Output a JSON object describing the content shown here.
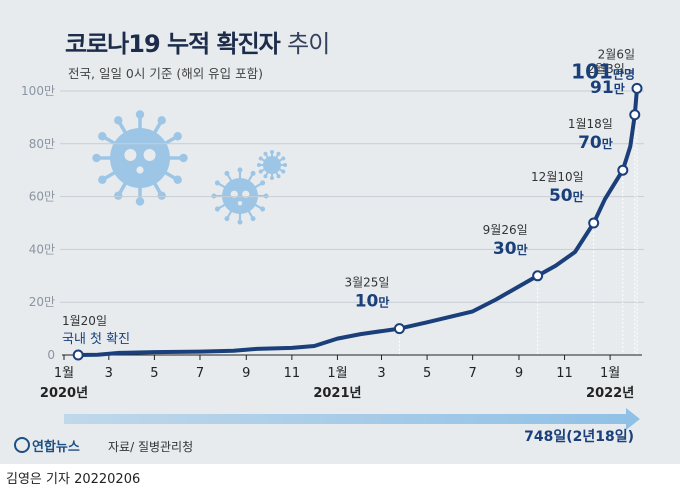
{
  "header": {
    "title": "코로나19 누적 확진자",
    "title_suffix": "추이",
    "subtitle": "전국, 일일 0시 기준 (해외 유입 포함)"
  },
  "chart_data": {
    "type": "line",
    "title": "코로나19 누적 확진자 추이",
    "subtitle": "전국, 일일 0시 기준 (해외 유입 포함)",
    "y_unit": "만",
    "ylim": [
      0,
      100
    ],
    "y_ticks": [
      "0",
      "20만",
      "40만",
      "60만",
      "80만",
      "100만"
    ],
    "x_range": [
      "2020-01-01",
      "2022-02-10"
    ],
    "x_ticks": [
      {
        "date": "2020-01-01",
        "label": "1월"
      },
      {
        "date": "2020-03-01",
        "label": "3"
      },
      {
        "date": "2020-05-01",
        "label": "5"
      },
      {
        "date": "2020-07-01",
        "label": "7"
      },
      {
        "date": "2020-09-01",
        "label": "9"
      },
      {
        "date": "2020-11-01",
        "label": "11"
      },
      {
        "date": "2021-01-01",
        "label": "1월"
      },
      {
        "date": "2021-03-01",
        "label": "3"
      },
      {
        "date": "2021-05-01",
        "label": "5"
      },
      {
        "date": "2021-07-01",
        "label": "7"
      },
      {
        "date": "2021-09-01",
        "label": "9"
      },
      {
        "date": "2021-11-01",
        "label": "11"
      },
      {
        "date": "2022-01-01",
        "label": "1월"
      }
    ],
    "year_labels": [
      {
        "date": "2020-01-01",
        "label": "2020년"
      },
      {
        "date": "2021-01-01",
        "label": "2021년"
      },
      {
        "date": "2022-01-01",
        "label": "2022년"
      }
    ],
    "grid": true,
    "series": [
      {
        "color": "#1a3f7a",
        "points": [
          [
            "2020-01-20",
            0
          ],
          [
            "2020-02-15",
            0.1
          ],
          [
            "2020-03-15",
            0.8
          ],
          [
            "2020-05-01",
            1.1
          ],
          [
            "2020-07-01",
            1.3
          ],
          [
            "2020-08-15",
            1.6
          ],
          [
            "2020-09-15",
            2.3
          ],
          [
            "2020-11-01",
            2.7
          ],
          [
            "2020-12-01",
            3.4
          ],
          [
            "2021-01-01",
            6.2
          ],
          [
            "2021-02-01",
            7.9
          ],
          [
            "2021-03-25",
            10
          ],
          [
            "2021-05-01",
            12.4
          ],
          [
            "2021-07-01",
            16.5
          ],
          [
            "2021-08-01",
            21
          ],
          [
            "2021-09-26",
            30
          ],
          [
            "2021-10-20",
            33.8
          ],
          [
            "2021-11-15",
            39
          ],
          [
            "2021-12-10",
            50
          ],
          [
            "2021-12-25",
            59
          ],
          [
            "2022-01-18",
            70
          ],
          [
            "2022-01-28",
            79
          ],
          [
            "2022-02-03",
            91
          ],
          [
            "2022-02-06",
            101
          ]
        ]
      }
    ],
    "annotations": [
      {
        "date": "2020-01-20",
        "y": 0,
        "date_label": "1월20일",
        "text": "국내 첫 확진"
      },
      {
        "date": "2021-03-25",
        "y": 10,
        "date_label": "3월25일",
        "value": "10",
        "unit": "만"
      },
      {
        "date": "2021-09-26",
        "y": 30,
        "date_label": "9월26일",
        "value": "30",
        "unit": "만"
      },
      {
        "date": "2021-12-10",
        "y": 50,
        "date_label": "12월10일",
        "value": "50",
        "unit": "만"
      },
      {
        "date": "2022-01-18",
        "y": 70,
        "date_label": "1월18일",
        "value": "70",
        "unit": "만"
      },
      {
        "date": "2022-02-03",
        "y": 91,
        "date_label": "2월3일",
        "value": "91",
        "unit": "만"
      },
      {
        "date": "2022-02-06",
        "y": 101,
        "date_label": "2월6일",
        "value": "101",
        "unit": "만명"
      }
    ],
    "duration_label": "748일(2년18일)"
  },
  "footer": {
    "logo": "연합뉴스",
    "source": "자료/ 질병관리청",
    "credit": "김영은 기자  20220206"
  },
  "colors": {
    "background": "#e7ebee",
    "line": "#1a3f7a",
    "arrow": "#8fc0e6",
    "virus": "#9dc6e6",
    "title": "#1c2c4a"
  }
}
